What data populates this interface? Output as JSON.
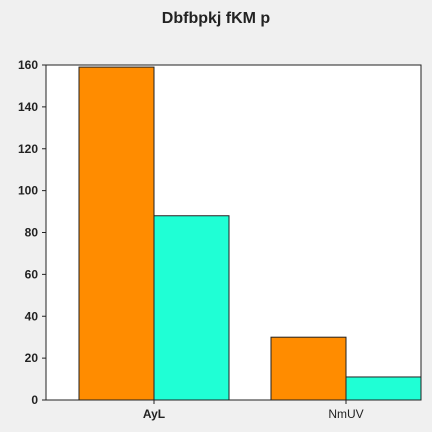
{
  "chart_data": {
    "type": "bar",
    "title": "Dbfbpkj fKM p",
    "xlabel": "",
    "ylabel": "",
    "categories": [
      "AyL",
      "NmUV"
    ],
    "series": [
      {
        "values": [
          159,
          30
        ],
        "color": "#ff8c00"
      },
      {
        "values": [
          88,
          11
        ],
        "color": "#1fffd5"
      }
    ],
    "ylim": [
      0,
      160
    ],
    "yticks": [
      0,
      20,
      40,
      60,
      80,
      100,
      120,
      140,
      160
    ],
    "grid": false,
    "legend": "none"
  }
}
